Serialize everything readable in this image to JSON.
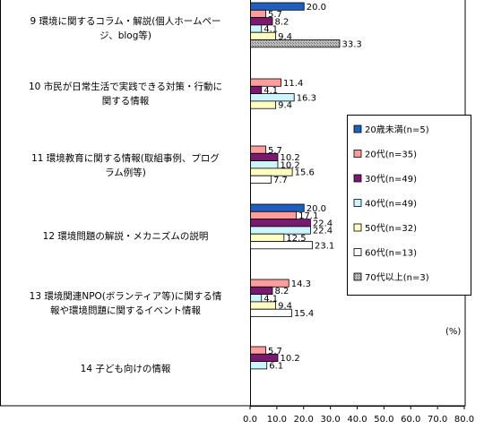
{
  "chart_data": {
    "type": "bar",
    "orientation": "horizontal",
    "unit": "(%)",
    "xlim": [
      0,
      80
    ],
    "ticks": [
      "0.0",
      "10.0",
      "20.0",
      "30.0",
      "40.0",
      "50.0",
      "60.0",
      "70.0",
      "80.0"
    ],
    "grid": false,
    "legend_position": "right",
    "categories": [
      {
        "lines": [
          "9 環境に関するコラム・解説(個人ホームペー",
          "ジ、blog等)"
        ],
        "values": [
          20.0,
          5.7,
          8.2,
          4.1,
          9.4,
          null,
          33.3
        ]
      },
      {
        "lines": [
          "10 市民が日常生活で実践できる対策・行動に",
          "関する情報"
        ],
        "values": [
          null,
          11.4,
          4.1,
          16.3,
          9.4,
          null,
          null
        ]
      },
      {
        "lines": [
          "11 環境教育に関する情報(取組事例、プログ",
          "ラム例等)"
        ],
        "values": [
          null,
          5.7,
          10.2,
          10.2,
          15.6,
          7.7,
          null
        ]
      },
      {
        "lines": [
          "12 環境問題の解説・メカニズムの説明"
        ],
        "values": [
          20.0,
          17.1,
          22.4,
          22.4,
          12.5,
          23.1,
          null
        ]
      },
      {
        "lines": [
          "13 環境関連NPO(ボランティア等)に関する情",
          "報や環境問題に関するイベント情報"
        ],
        "values": [
          null,
          14.3,
          8.2,
          4.1,
          9.4,
          15.4,
          null
        ]
      },
      {
        "lines": [
          "14 子ども向けの情報"
        ],
        "values": [
          null,
          5.7,
          10.2,
          6.1,
          null,
          null,
          null
        ]
      }
    ],
    "series": [
      {
        "name": "20歳未満(n=5)",
        "color": "#1f5fbf",
        "pattern": "solid"
      },
      {
        "name": "20代(n=35)",
        "color": "#ff9c9c",
        "pattern": "solid"
      },
      {
        "name": "30代(n=49)",
        "color": "#7a1a6e",
        "pattern": "solid"
      },
      {
        "name": "40代(n=49)",
        "color": "#ccf5ff",
        "pattern": "solid"
      },
      {
        "name": "50代(n=32)",
        "color": "#ffffc4",
        "pattern": "solid"
      },
      {
        "name": "60代(n=13)",
        "color": "#ffffff",
        "pattern": "solid"
      },
      {
        "name": "70代以上(n=3)",
        "color": "#b8b8b8",
        "pattern": "hatch"
      }
    ]
  }
}
